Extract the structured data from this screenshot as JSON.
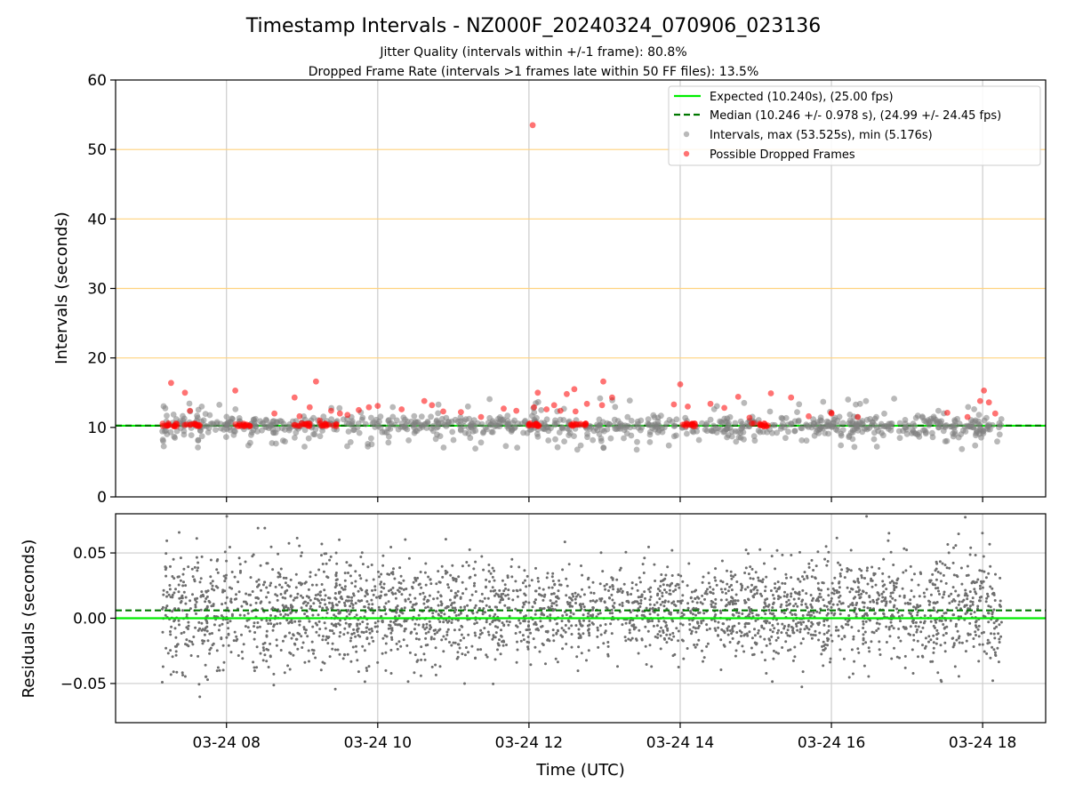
{
  "figure": {
    "title": "Timestamp Intervals - NZ000F_20240324_070906_023136",
    "subtitle_line1": "Jitter Quality (intervals within +/-1 frame): 80.8%",
    "subtitle_line2": "Dropped Frame Rate (intervals >1 frames late within 50 FF files): 13.5%",
    "xlabel": "Time (UTC)"
  },
  "colors": {
    "expected": "#00ee00",
    "median": "#007700",
    "intervals": "#808080",
    "dropped": "#ff0000",
    "hgrid_top": "#ffd27f",
    "grid": "#cccccc",
    "residual_points": "#6e6e6e"
  },
  "chart_data": [
    {
      "type": "scatter",
      "panel": "intervals",
      "ylabel": "Intervals (seconds)",
      "xlim": [
        "2024-03-24 06:32",
        "2024-03-24 18:50"
      ],
      "ylim": [
        0,
        60
      ],
      "x_ticks": [
        "03-24 08",
        "03-24 10",
        "03-24 12",
        "03-24 14",
        "03-24 16",
        "03-24 18"
      ],
      "y_ticks": [
        "0",
        "10",
        "20",
        "30",
        "40",
        "50",
        "60"
      ],
      "legend_position": "top-right",
      "legend": {
        "expected": "Expected (10.240s), (25.00 fps)",
        "median": "Median (10.246 +/- 0.978 s), (24.99 +/- 24.45 fps)",
        "intervals": "Intervals, max (53.525s), min (5.176s)",
        "dropped": "Possible Dropped Frames"
      },
      "expected_interval": 10.24,
      "median_interval": 10.246,
      "time_span": [
        "2024-03-24 07:09",
        "2024-03-24 18:15"
      ],
      "interval_max": 53.525,
      "interval_min": 5.176,
      "series": [
        {
          "name": "Possible Dropped Frames",
          "points": [
            [
              "2024-03-24 07:16",
              16.4
            ],
            [
              "2024-03-24 07:27",
              15.0
            ],
            [
              "2024-03-24 07:31",
              12.4
            ],
            [
              "2024-03-24 08:07",
              15.3
            ],
            [
              "2024-03-24 08:38",
              12.0
            ],
            [
              "2024-03-24 08:54",
              14.3
            ],
            [
              "2024-03-24 08:58",
              11.6
            ],
            [
              "2024-03-24 09:06",
              12.9
            ],
            [
              "2024-03-24 09:11",
              16.6
            ],
            [
              "2024-03-24 09:14",
              11.0
            ],
            [
              "2024-03-24 09:23",
              12.4
            ],
            [
              "2024-03-24 09:30",
              12.0
            ],
            [
              "2024-03-24 09:36",
              11.8
            ],
            [
              "2024-03-24 09:45",
              12.5
            ],
            [
              "2024-03-24 09:53",
              12.9
            ],
            [
              "2024-03-24 10:00",
              13.1
            ],
            [
              "2024-03-24 10:19",
              12.6
            ],
            [
              "2024-03-24 10:37",
              13.8
            ],
            [
              "2024-03-24 10:43",
              13.2
            ],
            [
              "2024-03-24 10:52",
              12.3
            ],
            [
              "2024-03-24 11:06",
              12.2
            ],
            [
              "2024-03-24 11:22",
              11.5
            ],
            [
              "2024-03-24 11:40",
              12.7
            ],
            [
              "2024-03-24 11:50",
              12.4
            ],
            [
              "2024-03-24 12:04",
              12.9
            ],
            [
              "2024-03-24 12:07",
              15.0
            ],
            [
              "2024-03-24 12:14",
              12.6
            ],
            [
              "2024-03-24 12:20",
              13.2
            ],
            [
              "2024-03-24 12:25",
              12.4
            ],
            [
              "2024-03-24 12:30",
              14.8
            ],
            [
              "2024-03-24 12:37",
              12.3
            ],
            [
              "2024-03-24 12:46",
              13.4
            ],
            [
              "2024-03-24 12:58",
              13.2
            ],
            [
              "2024-03-24 13:06",
              14.3
            ],
            [
              "2024-03-24 12:36",
              15.5
            ],
            [
              "2024-03-24 12:59",
              16.6
            ],
            [
              "2024-03-24 13:55",
              13.3
            ],
            [
              "2024-03-24 14:00",
              16.2
            ],
            [
              "2024-03-24 14:06",
              13.0
            ],
            [
              "2024-03-24 14:24",
              13.4
            ],
            [
              "2024-03-24 14:35",
              12.8
            ],
            [
              "2024-03-24 14:46",
              14.4
            ],
            [
              "2024-03-24 14:55",
              11.4
            ],
            [
              "2024-03-24 15:12",
              14.9
            ],
            [
              "2024-03-24 15:28",
              14.3
            ],
            [
              "2024-03-24 16:00",
              12.0
            ],
            [
              "2024-03-24 15:42",
              11.6
            ],
            [
              "2024-03-24 16:00",
              12.1
            ],
            [
              "2024-03-24 16:21",
              11.5
            ],
            [
              "2024-03-24 17:32",
              12.1
            ],
            [
              "2024-03-24 17:48",
              11.5
            ],
            [
              "2024-03-24 17:58",
              13.8
            ],
            [
              "2024-03-24 18:01",
              15.3
            ],
            [
              "2024-03-24 18:05",
              13.6
            ],
            [
              "2024-03-24 18:10",
              12.0
            ],
            [
              "2024-03-24 12:03",
              53.5
            ]
          ]
        }
      ]
    },
    {
      "type": "scatter",
      "panel": "residuals",
      "ylabel": "Residuals (seconds)",
      "xlim": [
        "2024-03-24 06:32",
        "2024-03-24 18:50"
      ],
      "ylim": [
        -0.08,
        0.08
      ],
      "y_ticks": [
        "0.05",
        "0.00",
        "−0.05"
      ],
      "expected_residual": 0.0,
      "median_residual": 0.006
    }
  ]
}
